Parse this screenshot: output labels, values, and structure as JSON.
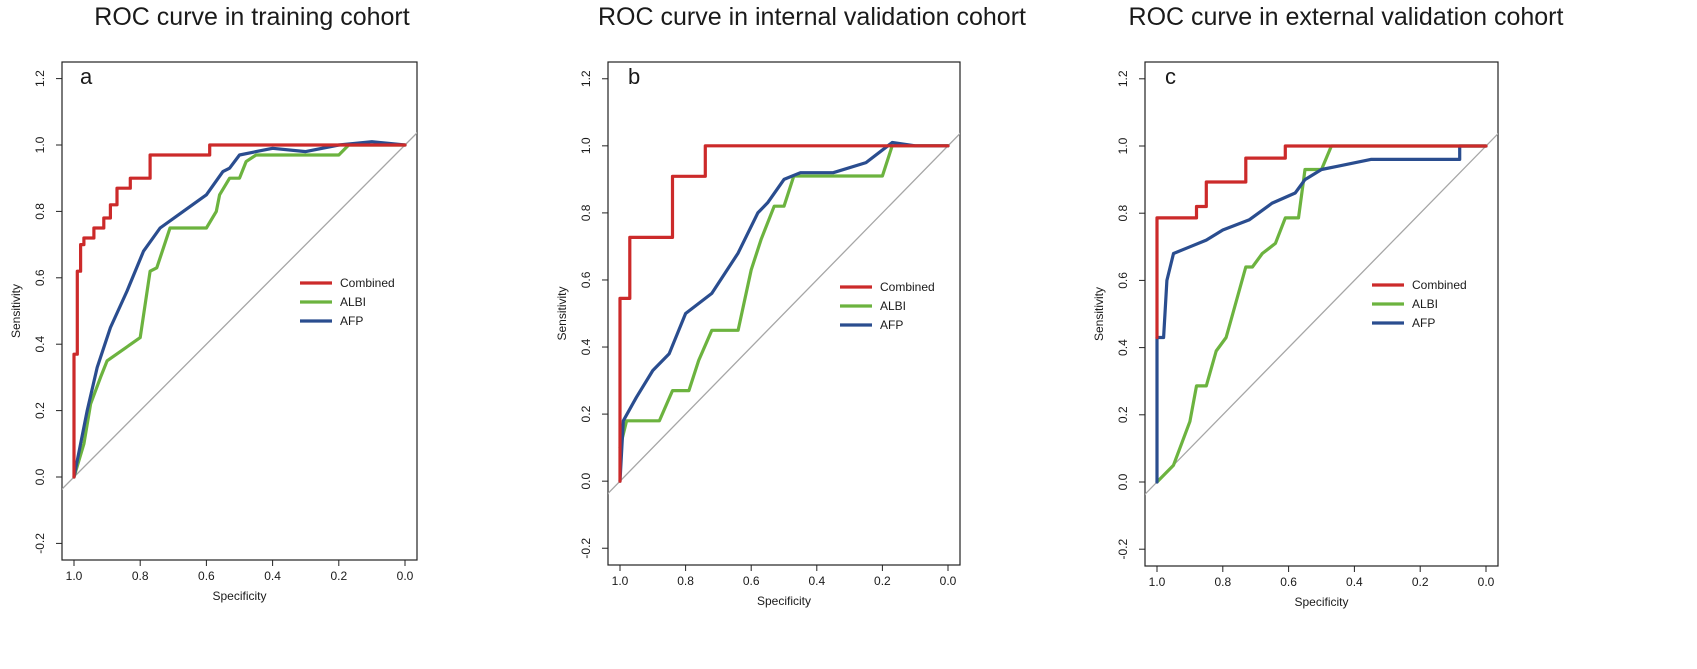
{
  "figure": {
    "panels": [
      {
        "title": "ROC curve in training cohort",
        "letter": "a"
      },
      {
        "title": "ROC curve in internal validation cohort",
        "letter": "b"
      },
      {
        "title": "ROC curve in external validation cohort",
        "letter": "c"
      }
    ]
  },
  "colors": {
    "Combined": "#cc2a2a",
    "ALBI": "#6cb33f",
    "AFP": "#2a4d8f",
    "reference": "#a6a6a6",
    "frame": "#222222"
  },
  "chart_data": [
    {
      "type": "line",
      "title": "ROC curve in training cohort",
      "panel_label": "a",
      "xlabel": "Specificity",
      "ylabel": "Sensitivity",
      "xlim": [
        1.0,
        0.0
      ],
      "ylim": [
        -0.25,
        1.25
      ],
      "x_ticks": [
        "1.0",
        "0.8",
        "0.6",
        "0.4",
        "0.2",
        "0.0"
      ],
      "y_ticks": [
        "-0.2",
        "0.0",
        "0.2",
        "0.4",
        "0.6",
        "0.8",
        "1.0",
        "1.2"
      ],
      "legend": {
        "position": "right",
        "entries": [
          "Combined",
          "ALBI",
          "AFP"
        ]
      },
      "series": [
        {
          "name": "Combined",
          "x": [
            1.0,
            1.0,
            0.99,
            0.99,
            0.98,
            0.98,
            0.97,
            0.97,
            0.94,
            0.94,
            0.91,
            0.91,
            0.89,
            0.89,
            0.87,
            0.87,
            0.83,
            0.83,
            0.77,
            0.77,
            0.72,
            0.72,
            0.59,
            0.59,
            0.0
          ],
          "y": [
            0.0,
            0.37,
            0.37,
            0.62,
            0.62,
            0.7,
            0.7,
            0.72,
            0.72,
            0.75,
            0.75,
            0.78,
            0.78,
            0.82,
            0.82,
            0.87,
            0.87,
            0.9,
            0.9,
            0.97,
            0.97,
            0.97,
            0.97,
            1.0,
            1.0
          ]
        },
        {
          "name": "ALBI",
          "x": [
            1.0,
            0.97,
            0.95,
            0.92,
            0.9,
            0.8,
            0.77,
            0.75,
            0.71,
            0.6,
            0.57,
            0.56,
            0.53,
            0.5,
            0.48,
            0.45,
            0.2,
            0.17,
            0.0
          ],
          "y": [
            0.0,
            0.1,
            0.22,
            0.3,
            0.35,
            0.42,
            0.62,
            0.63,
            0.75,
            0.75,
            0.8,
            0.85,
            0.9,
            0.9,
            0.95,
            0.97,
            0.97,
            1.0,
            1.0
          ]
        },
        {
          "name": "AFP",
          "x": [
            1.0,
            0.96,
            0.93,
            0.89,
            0.84,
            0.79,
            0.74,
            0.67,
            0.6,
            0.55,
            0.53,
            0.5,
            0.45,
            0.4,
            0.3,
            0.2,
            0.1,
            0.0
          ],
          "y": [
            0.0,
            0.2,
            0.33,
            0.45,
            0.56,
            0.68,
            0.75,
            0.8,
            0.85,
            0.92,
            0.93,
            0.97,
            0.98,
            0.99,
            0.98,
            1.0,
            1.01,
            1.0
          ]
        }
      ]
    },
    {
      "type": "line",
      "title": "ROC curve in internal validation cohort",
      "panel_label": "b",
      "xlabel": "Specificity",
      "ylabel": "Sensitivity",
      "xlim": [
        1.0,
        0.0
      ],
      "ylim": [
        -0.25,
        1.25
      ],
      "x_ticks": [
        "1.0",
        "0.8",
        "0.6",
        "0.4",
        "0.2",
        "0.0"
      ],
      "y_ticks": [
        "-0.2",
        "0.0",
        "0.2",
        "0.4",
        "0.6",
        "0.8",
        "1.0",
        "1.2"
      ],
      "legend": {
        "position": "right",
        "entries": [
          "Combined",
          "ALBI",
          "AFP"
        ]
      },
      "series": [
        {
          "name": "Combined",
          "x": [
            1.0,
            1.0,
            0.97,
            0.97,
            0.84,
            0.84,
            0.74,
            0.74,
            0.0
          ],
          "y": [
            0.0,
            0.545,
            0.545,
            0.727,
            0.727,
            0.909,
            0.909,
            1.0,
            1.0
          ]
        },
        {
          "name": "ALBI",
          "x": [
            1.0,
            0.98,
            0.88,
            0.84,
            0.79,
            0.76,
            0.72,
            0.64,
            0.6,
            0.57,
            0.53,
            0.5,
            0.47,
            0.2,
            0.17,
            0.0
          ],
          "y": [
            0.1,
            0.18,
            0.18,
            0.27,
            0.27,
            0.36,
            0.45,
            0.45,
            0.63,
            0.72,
            0.82,
            0.82,
            0.91,
            0.91,
            1.0,
            1.0
          ]
        },
        {
          "name": "AFP",
          "x": [
            1.0,
            0.99,
            0.95,
            0.9,
            0.85,
            0.8,
            0.72,
            0.64,
            0.58,
            0.55,
            0.5,
            0.45,
            0.35,
            0.25,
            0.17,
            0.1,
            0.0
          ],
          "y": [
            0.0,
            0.18,
            0.25,
            0.33,
            0.38,
            0.5,
            0.56,
            0.68,
            0.8,
            0.83,
            0.9,
            0.92,
            0.92,
            0.95,
            1.01,
            1.0,
            1.0
          ]
        }
      ]
    },
    {
      "type": "line",
      "title": "ROC curve in external validation cohort",
      "panel_label": "c",
      "xlabel": "Specificity",
      "ylabel": "Sensitivity",
      "xlim": [
        1.0,
        0.0
      ],
      "ylim": [
        -0.25,
        1.25
      ],
      "x_ticks": [
        "1.0",
        "0.8",
        "0.6",
        "0.4",
        "0.2",
        "0.0"
      ],
      "y_ticks": [
        "-0.2",
        "0.0",
        "0.2",
        "0.4",
        "0.6",
        "0.8",
        "1.0",
        "1.2"
      ],
      "legend": {
        "position": "right",
        "entries": [
          "Combined",
          "ALBI",
          "AFP"
        ]
      },
      "series": [
        {
          "name": "Combined",
          "x": [
            1.0,
            1.0,
            0.88,
            0.88,
            0.85,
            0.85,
            0.73,
            0.73,
            0.61,
            0.61,
            0.47,
            0.0
          ],
          "y": [
            0.43,
            0.786,
            0.786,
            0.82,
            0.82,
            0.893,
            0.893,
            0.964,
            0.964,
            1.0,
            1.0,
            1.0
          ]
        },
        {
          "name": "ALBI",
          "x": [
            1.0,
            0.95,
            0.9,
            0.88,
            0.85,
            0.82,
            0.79,
            0.77,
            0.73,
            0.71,
            0.68,
            0.64,
            0.61,
            0.57,
            0.55,
            0.5,
            0.47,
            0.0
          ],
          "y": [
            0.0,
            0.05,
            0.18,
            0.286,
            0.286,
            0.39,
            0.43,
            0.5,
            0.64,
            0.64,
            0.68,
            0.71,
            0.786,
            0.786,
            0.93,
            0.93,
            1.0,
            1.0
          ]
        },
        {
          "name": "AFP",
          "x": [
            1.0,
            1.0,
            0.98,
            0.97,
            0.95,
            0.9,
            0.85,
            0.8,
            0.72,
            0.65,
            0.58,
            0.55,
            0.5,
            0.45,
            0.35,
            0.25,
            0.08,
            0.08,
            0.0
          ],
          "y": [
            0.0,
            0.43,
            0.43,
            0.6,
            0.68,
            0.7,
            0.72,
            0.75,
            0.78,
            0.83,
            0.86,
            0.9,
            0.93,
            0.94,
            0.96,
            0.96,
            0.96,
            1.0,
            1.0
          ]
        }
      ]
    }
  ]
}
